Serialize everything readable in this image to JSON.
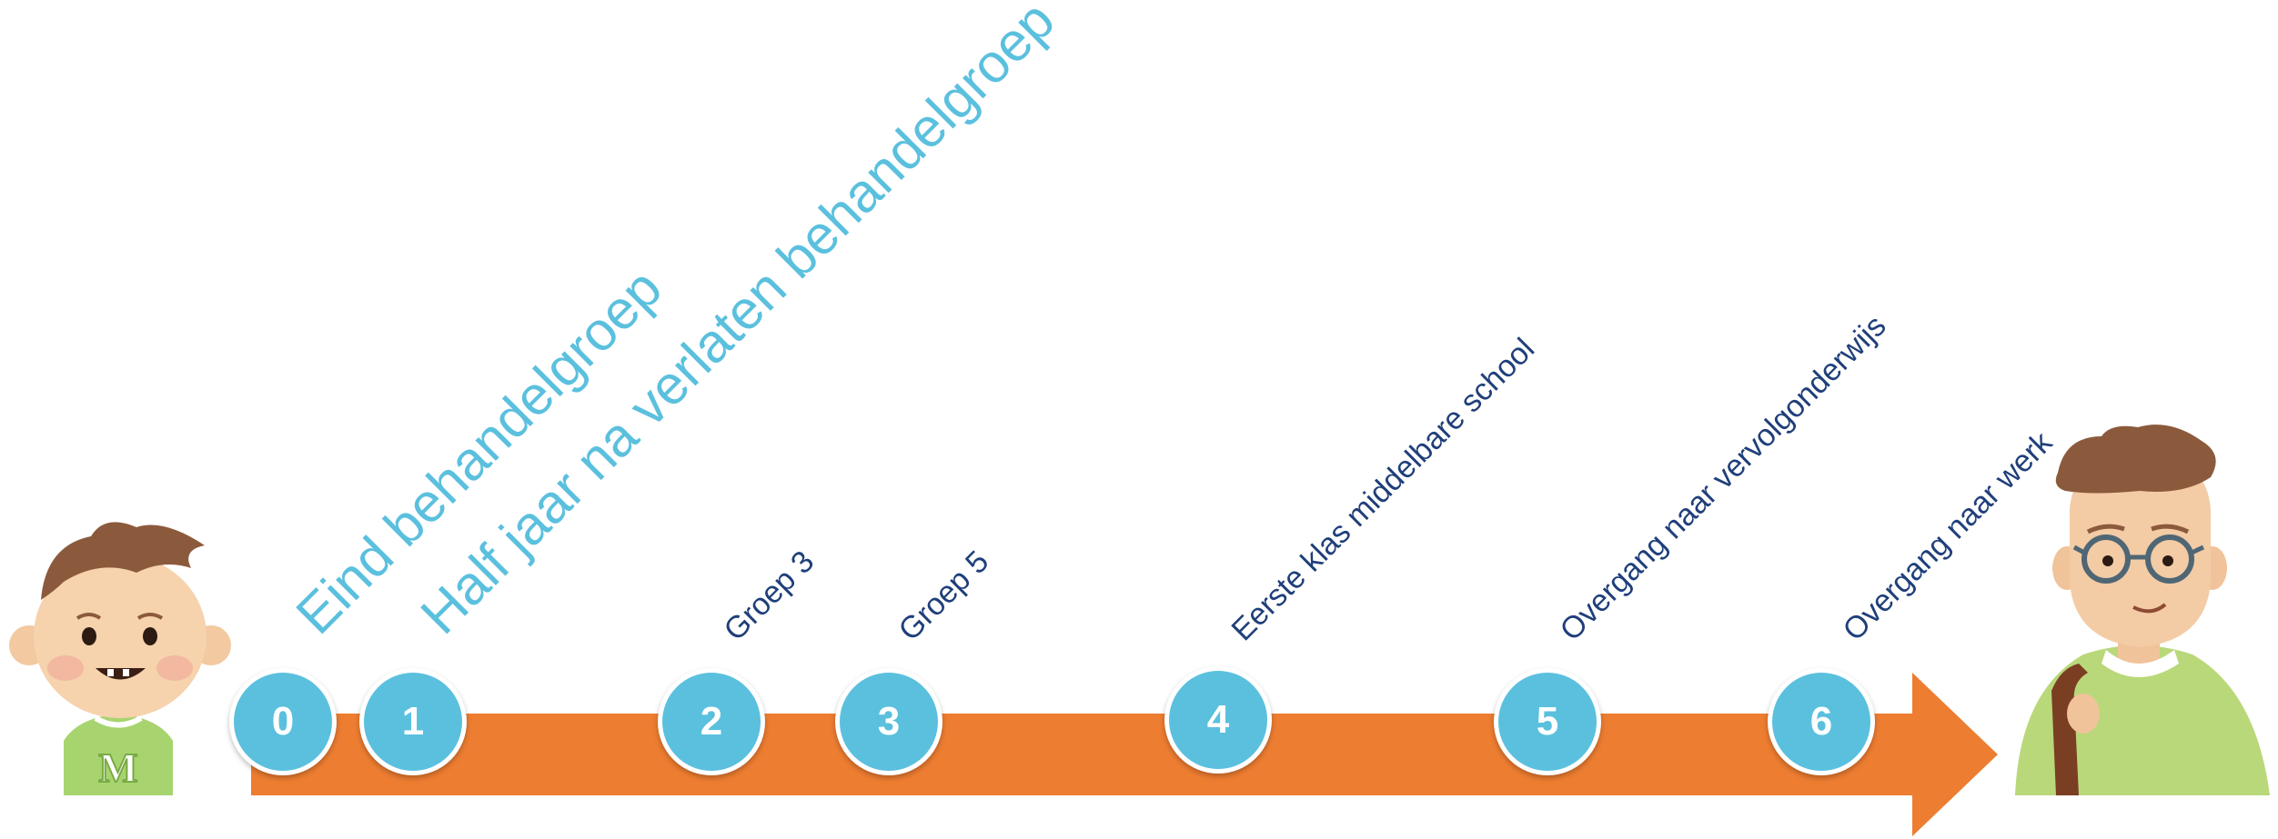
{
  "colors": {
    "arrow": "#ED7D31",
    "circle": "#5BC0DE",
    "label_light": "#5BC0DE",
    "label_dark": "#1F3F7A",
    "number_text": "#FFFFFF"
  },
  "milestones": [
    {
      "number": "0",
      "label": "Eind behandelgroep",
      "style": "big"
    },
    {
      "number": "1",
      "label": "Half jaar na verlaten behandelgroep",
      "style": "big"
    },
    {
      "number": "2",
      "label": "Groep 3",
      "style": "small"
    },
    {
      "number": "3",
      "label": "Groep 5",
      "style": "small"
    },
    {
      "number": "4",
      "label": "Eerste klas middelbare school",
      "style": "small"
    },
    {
      "number": "5",
      "label": "Overgang naar vervolgonderwijs",
      "style": "small"
    },
    {
      "number": "6",
      "label": "Overgang naar werk",
      "style": "small"
    }
  ],
  "illustrations": {
    "child": {
      "icon": "young-child-illustration",
      "shirt_letter": "M"
    },
    "adult": {
      "icon": "young-adult-with-glasses-illustration"
    }
  }
}
